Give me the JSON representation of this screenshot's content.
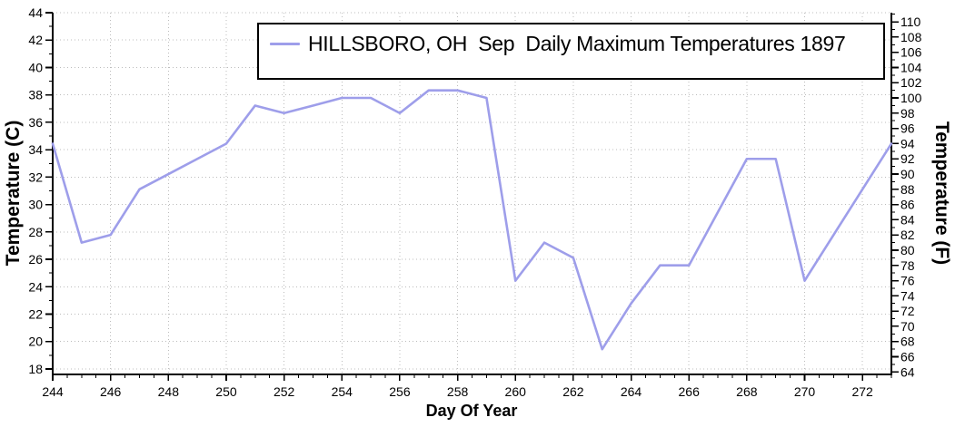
{
  "page": {
    "background": "#ffffff",
    "text_color": "#000000"
  },
  "legend": {
    "label": "HILLSBORO, OH  Sep  Daily Maximum Temperatures 1897",
    "position": "top-center-inside",
    "border_color": "#000000"
  },
  "axes": {
    "x": {
      "label": "Day Of Year",
      "min": 244,
      "max": 273,
      "major_tick_step": 2,
      "minor_tick_step": 0.5,
      "major_tick_labels": [
        244,
        246,
        248,
        250,
        252,
        254,
        256,
        258,
        260,
        262,
        264,
        266,
        268,
        270,
        272
      ]
    },
    "y_left": {
      "label": "Temperature (C)",
      "min": 17.6,
      "max": 44,
      "major_tick_step": 2,
      "minor_tick_step": 1,
      "major_tick_labels": [
        44,
        42,
        40,
        38,
        36,
        34,
        32,
        30,
        28,
        26,
        24,
        22,
        20,
        18
      ]
    },
    "y_right": {
      "label": "Temperature (F)",
      "min": 63.7,
      "max": 111.2,
      "major_tick_step": 2,
      "minor_tick_step": 1,
      "major_tick_labels": [
        110,
        108,
        106,
        104,
        102,
        100,
        98,
        96,
        94,
        92,
        90,
        88,
        86,
        84,
        82,
        80,
        78,
        76,
        74,
        72,
        70,
        68,
        66,
        64
      ]
    }
  },
  "chart_data": {
    "type": "line",
    "title": "",
    "xlabel": "Day Of Year",
    "ylabel_left": "Temperature (C)",
    "ylabel_right": "Temperature (F)",
    "xlim": [
      244,
      273
    ],
    "ylim_c": [
      17.6,
      44
    ],
    "ylim_f": [
      63.7,
      111.2
    ],
    "grid": "dotted",
    "grid_color": "#bcbcbc",
    "axis_color": "#000000",
    "legend_position": "top-center-inside",
    "x": [
      244,
      245,
      246,
      247,
      248,
      249,
      250,
      251,
      252,
      253,
      254,
      255,
      256,
      257,
      258,
      259,
      260,
      261,
      262,
      263,
      264,
      265,
      266,
      267,
      268,
      269,
      270,
      271,
      272,
      273
    ],
    "series": [
      {
        "name": "HILLSBORO, OH  Sep  Daily Maximum Temperatures 1897",
        "color": "#9e9eea",
        "values_f": [
          94,
          81,
          82,
          88,
          90,
          92,
          94,
          99,
          98,
          99,
          100,
          100,
          98,
          101,
          101,
          100,
          76,
          81,
          79,
          67,
          73,
          78,
          78,
          85,
          92,
          92,
          76,
          82,
          88,
          94
        ],
        "values_c": [
          34.44,
          27.22,
          27.78,
          31.11,
          32.22,
          33.33,
          34.44,
          37.22,
          36.67,
          37.22,
          37.78,
          37.78,
          36.67,
          38.33,
          38.33,
          37.78,
          24.44,
          27.22,
          26.11,
          19.44,
          22.78,
          25.56,
          25.56,
          29.44,
          33.33,
          33.33,
          24.44,
          27.78,
          31.11,
          34.44
        ]
      }
    ]
  }
}
